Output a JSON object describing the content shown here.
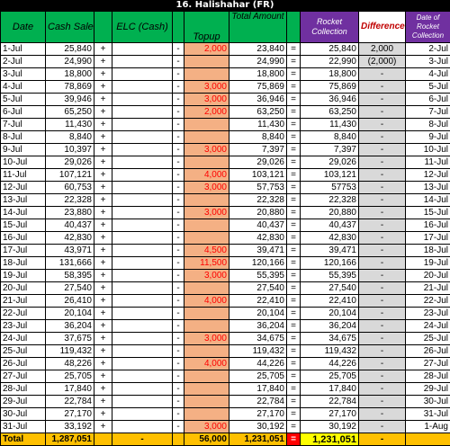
{
  "sheet_title": "16. Halishahar (FR)",
  "headers": {
    "date": "Date",
    "cash_sales": "Cash Sales",
    "elc": "ELC (Cash)",
    "topup": "Topup",
    "total_amount": "Total Amount",
    "rocket_collection": "Rocket Collection",
    "difference": "Difference",
    "date_of_rocket": "Date of Rocket Collection"
  },
  "rows": [
    {
      "date": "1-Jul",
      "cash": "25,840",
      "plus": "+",
      "minus": "-",
      "topup": "2,000",
      "total": "23,840",
      "eq": "=",
      "rocket": "25,840",
      "diff": "2,000",
      "rdate": "2-Jul"
    },
    {
      "date": "2-Jul",
      "cash": "24,990",
      "plus": "+",
      "minus": "-",
      "topup": "",
      "total": "24,990",
      "eq": "=",
      "rocket": "22,990",
      "diff": "(2,000)",
      "rdate": "3-Jul"
    },
    {
      "date": "3-Jul",
      "cash": "18,800",
      "plus": "+",
      "minus": "-",
      "topup": "",
      "total": "18,800",
      "eq": "=",
      "rocket": "18,800",
      "diff": "-",
      "rdate": "4-Jul"
    },
    {
      "date": "4-Jul",
      "cash": "78,869",
      "plus": "+",
      "minus": "-",
      "topup": "3,000",
      "total": "75,869",
      "eq": "=",
      "rocket": "75,869",
      "diff": "-",
      "rdate": "5-Jul"
    },
    {
      "date": "5-Jul",
      "cash": "39,946",
      "plus": "+",
      "minus": "-",
      "topup": "3,000",
      "total": "36,946",
      "eq": "=",
      "rocket": "36,946",
      "diff": "-",
      "rdate": "6-Jul"
    },
    {
      "date": "6-Jul",
      "cash": "65,250",
      "plus": "+",
      "minus": "-",
      "topup": "2,000",
      "total": "63,250",
      "eq": "=",
      "rocket": "63,250",
      "diff": "-",
      "rdate": "7-Jul"
    },
    {
      "date": "7-Jul",
      "cash": "11,430",
      "plus": "+",
      "minus": "-",
      "topup": "",
      "total": "11,430",
      "eq": "=",
      "rocket": "11,430",
      "diff": "-",
      "rdate": "8-Jul"
    },
    {
      "date": "8-Jul",
      "cash": "8,840",
      "plus": "+",
      "minus": "-",
      "topup": "",
      "total": "8,840",
      "eq": "=",
      "rocket": "8,840",
      "diff": "-",
      "rdate": "9-Jul"
    },
    {
      "date": "9-Jul",
      "cash": "10,397",
      "plus": "+",
      "minus": "-",
      "topup": "3,000",
      "total": "7,397",
      "eq": "=",
      "rocket": "7,397",
      "diff": "-",
      "rdate": "10-Jul"
    },
    {
      "date": "10-Jul",
      "cash": "29,026",
      "plus": "+",
      "minus": "-",
      "topup": "",
      "total": "29,026",
      "eq": "=",
      "rocket": "29,026",
      "diff": "-",
      "rdate": "11-Jul"
    },
    {
      "date": "11-Jul",
      "cash": "107,121",
      "plus": "+",
      "minus": "-",
      "topup": "4,000",
      "total": "103,121",
      "eq": "=",
      "rocket": "103,121",
      "diff": "-",
      "rdate": "12-Jul"
    },
    {
      "date": "12-Jul",
      "cash": "60,753",
      "plus": "+",
      "minus": "-",
      "topup": "3,000",
      "total": "57,753",
      "eq": "=",
      "rocket": "57753",
      "diff": "-",
      "rdate": "13-Jul"
    },
    {
      "date": "13-Jul",
      "cash": "22,328",
      "plus": "+",
      "minus": "-",
      "topup": "",
      "total": "22,328",
      "eq": "=",
      "rocket": "22,328",
      "diff": "-",
      "rdate": "14-Jul"
    },
    {
      "date": "14-Jul",
      "cash": "23,880",
      "plus": "+",
      "minus": "-",
      "topup": "3,000",
      "total": "20,880",
      "eq": "=",
      "rocket": "20,880",
      "diff": "-",
      "rdate": "15-Jul"
    },
    {
      "date": "15-Jul",
      "cash": "40,437",
      "plus": "+",
      "minus": "-",
      "topup": "",
      "total": "40,437",
      "eq": "=",
      "rocket": "40,437",
      "diff": "-",
      "rdate": "16-Jul"
    },
    {
      "date": "16-Jul",
      "cash": "42,830",
      "plus": "+",
      "minus": "-",
      "topup": "",
      "total": "42,830",
      "eq": "=",
      "rocket": "42,830",
      "diff": "-",
      "rdate": "17-Jul"
    },
    {
      "date": "17-Jul",
      "cash": "43,971",
      "plus": "+",
      "minus": "-",
      "topup": "4,500",
      "total": "39,471",
      "eq": "=",
      "rocket": "39,471",
      "diff": "-",
      "rdate": "18-Jul"
    },
    {
      "date": "18-Jul",
      "cash": "131,666",
      "plus": "+",
      "minus": "-",
      "topup": "11,500",
      "total": "120,166",
      "eq": "=",
      "rocket": "120,166",
      "diff": "-",
      "rdate": "19-Jul"
    },
    {
      "date": "19-Jul",
      "cash": "58,395",
      "plus": "+",
      "minus": "-",
      "topup": "3,000",
      "total": "55,395",
      "eq": "=",
      "rocket": "55,395",
      "diff": "-",
      "rdate": "20-Jul"
    },
    {
      "date": "20-Jul",
      "cash": "27,540",
      "plus": "+",
      "minus": "-",
      "topup": "",
      "total": "27,540",
      "eq": "=",
      "rocket": "27,540",
      "diff": "-",
      "rdate": "21-Jul"
    },
    {
      "date": "21-Jul",
      "cash": "26,410",
      "plus": "+",
      "minus": "-",
      "topup": "4,000",
      "total": "22,410",
      "eq": "=",
      "rocket": "22,410",
      "diff": "-",
      "rdate": "22-Jul"
    },
    {
      "date": "22-Jul",
      "cash": "20,104",
      "plus": "+",
      "minus": "-",
      "topup": "",
      "total": "20,104",
      "eq": "=",
      "rocket": "20,104",
      "diff": "-",
      "rdate": "23-Jul"
    },
    {
      "date": "23-Jul",
      "cash": "36,204",
      "plus": "+",
      "minus": "-",
      "topup": "",
      "total": "36,204",
      "eq": "=",
      "rocket": "36,204",
      "diff": "-",
      "rdate": "24-Jul"
    },
    {
      "date": "24-Jul",
      "cash": "37,675",
      "plus": "+",
      "minus": "-",
      "topup": "3,000",
      "total": "34,675",
      "eq": "=",
      "rocket": "34,675",
      "diff": "-",
      "rdate": "25-Jul"
    },
    {
      "date": "25-Jul",
      "cash": "119,432",
      "plus": "+",
      "minus": "-",
      "topup": "",
      "total": "119,432",
      "eq": "=",
      "rocket": "119,432",
      "diff": "-",
      "rdate": "26-Jul"
    },
    {
      "date": "26-Jul",
      "cash": "48,226",
      "plus": "+",
      "minus": "-",
      "topup": "4,000",
      "total": "44,226",
      "eq": "=",
      "rocket": "44,226",
      "diff": "-",
      "rdate": "27-Jul"
    },
    {
      "date": "27-Jul",
      "cash": "25,705",
      "plus": "+",
      "minus": "-",
      "topup": "",
      "total": "25,705",
      "eq": "=",
      "rocket": "25,705",
      "diff": "-",
      "rdate": "28-Jul"
    },
    {
      "date": "28-Jul",
      "cash": "17,840",
      "plus": "+",
      "minus": "-",
      "topup": "",
      "total": "17,840",
      "eq": "=",
      "rocket": "17,840",
      "diff": "-",
      "rdate": "29-Jul"
    },
    {
      "date": "29-Jul",
      "cash": "22,784",
      "plus": "+",
      "minus": "-",
      "topup": "",
      "total": "22,784",
      "eq": "=",
      "rocket": "22,784",
      "diff": "-",
      "rdate": "30-Jul"
    },
    {
      "date": "30-Jul",
      "cash": "27,170",
      "plus": "+",
      "minus": "-",
      "topup": "",
      "total": "27,170",
      "eq": "=",
      "rocket": "27,170",
      "diff": "-",
      "rdate": "31-Jul"
    },
    {
      "date": "31-Jul",
      "cash": "33,192",
      "plus": "+",
      "minus": "-",
      "topup": "3,000",
      "total": "30,192",
      "eq": "=",
      "rocket": "30,192",
      "diff": "-",
      "rdate": "1-Aug"
    }
  ],
  "total_row": {
    "label": "Total",
    "cash": "1,287,051",
    "elc": "-",
    "topup": "56,000",
    "total": "1,231,051",
    "eq": "=",
    "rocket": "1,231,051",
    "diff": "-"
  },
  "colors": {
    "header_green": "#00b050",
    "header_purple": "#7030a0",
    "topup_fill": "#f4b084",
    "topup_text": "#ff0000",
    "difference_fill": "#d9d9d9",
    "total_fill": "#ffc000",
    "rocket_total_fill": "#ffff00"
  }
}
